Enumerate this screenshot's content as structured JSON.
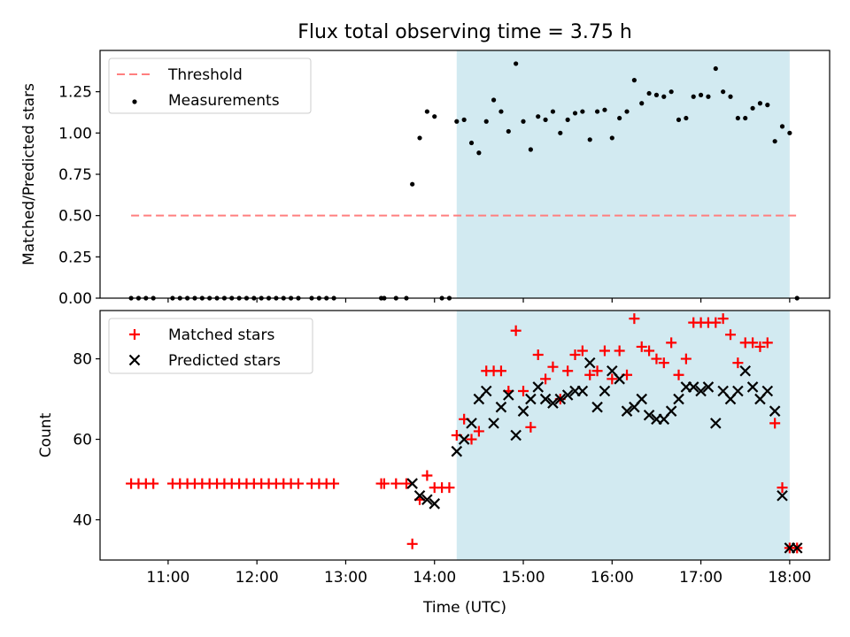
{
  "title": "Flux total observing time = 3.75 h",
  "colors": {
    "threshold": "#ff7f7f",
    "measurement": "#000000",
    "matched": "#ff0000",
    "predicted": "#000000",
    "observing_span": "#add8e6"
  },
  "chart_data": [
    {
      "type": "scatter",
      "ylabel": "Matched/Predicted stars",
      "xlabel": "",
      "ylim": [
        0,
        1.5
      ],
      "xlim": [
        "10:14",
        "18:27"
      ],
      "x_unit": "UTC time of day",
      "yticks": [
        "0.00",
        "0.25",
        "0.50",
        "0.75",
        "1.00",
        "1.25"
      ],
      "grid": false,
      "legend_position": "upper left",
      "legend": [
        "Threshold",
        "Measurements"
      ],
      "shaded_span": [
        "14:15",
        "18:00"
      ],
      "threshold": {
        "name": "Threshold",
        "value": 0.5,
        "x_range": [
          "10:35",
          "18:05"
        ]
      },
      "series": [
        {
          "name": "Measurements",
          "points": [
            [
              "10:35",
              0
            ],
            [
              "10:40",
              0
            ],
            [
              "10:45",
              0
            ],
            [
              "10:50",
              0
            ],
            [
              "11:03",
              0
            ],
            [
              "11:08",
              0
            ],
            [
              "11:13",
              0
            ],
            [
              "11:18",
              0
            ],
            [
              "11:23",
              0
            ],
            [
              "11:28",
              0
            ],
            [
              "11:33",
              0
            ],
            [
              "11:38",
              0
            ],
            [
              "11:43",
              0
            ],
            [
              "11:48",
              0
            ],
            [
              "11:53",
              0
            ],
            [
              "11:58",
              0
            ],
            [
              "12:03",
              0
            ],
            [
              "12:08",
              0
            ],
            [
              "12:13",
              0
            ],
            [
              "12:18",
              0
            ],
            [
              "12:23",
              0
            ],
            [
              "12:28",
              0
            ],
            [
              "12:37",
              0
            ],
            [
              "12:42",
              0
            ],
            [
              "12:47",
              0
            ],
            [
              "12:52",
              0
            ],
            [
              "13:24",
              0
            ],
            [
              "13:26",
              0
            ],
            [
              "13:34",
              0
            ],
            [
              "13:41",
              0
            ],
            [
              "13:45",
              0.69
            ],
            [
              "13:50",
              0.97
            ],
            [
              "13:55",
              1.13
            ],
            [
              "14:00",
              1.1
            ],
            [
              "14:05",
              0
            ],
            [
              "14:10",
              0
            ],
            [
              "14:15",
              1.07
            ],
            [
              "14:20",
              1.08
            ],
            [
              "14:25",
              0.94
            ],
            [
              "14:30",
              0.88
            ],
            [
              "14:35",
              1.07
            ],
            [
              "14:40",
              1.2
            ],
            [
              "14:45",
              1.13
            ],
            [
              "14:50",
              1.01
            ],
            [
              "14:55",
              1.42
            ],
            [
              "15:00",
              1.07
            ],
            [
              "15:05",
              0.9
            ],
            [
              "15:10",
              1.1
            ],
            [
              "15:15",
              1.08
            ],
            [
              "15:20",
              1.13
            ],
            [
              "15:25",
              1.0
            ],
            [
              "15:30",
              1.08
            ],
            [
              "15:35",
              1.12
            ],
            [
              "15:40",
              1.13
            ],
            [
              "15:45",
              0.96
            ],
            [
              "15:50",
              1.13
            ],
            [
              "15:55",
              1.14
            ],
            [
              "16:00",
              0.97
            ],
            [
              "16:05",
              1.09
            ],
            [
              "16:10",
              1.13
            ],
            [
              "16:15",
              1.32
            ],
            [
              "16:20",
              1.18
            ],
            [
              "16:25",
              1.24
            ],
            [
              "16:30",
              1.23
            ],
            [
              "16:35",
              1.22
            ],
            [
              "16:40",
              1.25
            ],
            [
              "16:45",
              1.08
            ],
            [
              "16:50",
              1.09
            ],
            [
              "16:55",
              1.22
            ],
            [
              "17:00",
              1.23
            ],
            [
              "17:05",
              1.22
            ],
            [
              "17:10",
              1.39
            ],
            [
              "17:15",
              1.25
            ],
            [
              "17:20",
              1.22
            ],
            [
              "17:25",
              1.09
            ],
            [
              "17:30",
              1.09
            ],
            [
              "17:35",
              1.15
            ],
            [
              "17:40",
              1.18
            ],
            [
              "17:45",
              1.17
            ],
            [
              "17:50",
              0.95
            ],
            [
              "17:55",
              1.04
            ],
            [
              "18:00",
              1.0
            ],
            [
              "18:05",
              0
            ]
          ]
        }
      ]
    },
    {
      "type": "scatter",
      "ylabel": "Count",
      "xlabel": "Time (UTC)",
      "ylim": [
        30,
        92
      ],
      "xlim": [
        "10:14",
        "18:27"
      ],
      "x_unit": "UTC time of day",
      "yticks": [
        "40",
        "60",
        "80"
      ],
      "xticks": [
        "11:00",
        "12:00",
        "13:00",
        "14:00",
        "15:00",
        "16:00",
        "17:00",
        "18:00"
      ],
      "grid": false,
      "legend_position": "upper left",
      "legend": [
        "Matched stars",
        "Predicted stars"
      ],
      "shaded_span": [
        "14:15",
        "18:00"
      ],
      "series": [
        {
          "name": "Matched stars",
          "marker": "plus",
          "points": [
            [
              "10:35",
              49
            ],
            [
              "10:40",
              49
            ],
            [
              "10:45",
              49
            ],
            [
              "10:50",
              49
            ],
            [
              "11:03",
              49
            ],
            [
              "11:08",
              49
            ],
            [
              "11:13",
              49
            ],
            [
              "11:18",
              49
            ],
            [
              "11:23",
              49
            ],
            [
              "11:28",
              49
            ],
            [
              "11:33",
              49
            ],
            [
              "11:38",
              49
            ],
            [
              "11:43",
              49
            ],
            [
              "11:48",
              49
            ],
            [
              "11:53",
              49
            ],
            [
              "11:58",
              49
            ],
            [
              "12:03",
              49
            ],
            [
              "12:08",
              49
            ],
            [
              "12:13",
              49
            ],
            [
              "12:18",
              49
            ],
            [
              "12:23",
              49
            ],
            [
              "12:28",
              49
            ],
            [
              "12:37",
              49
            ],
            [
              "12:42",
              49
            ],
            [
              "12:47",
              49
            ],
            [
              "12:52",
              49
            ],
            [
              "13:24",
              49
            ],
            [
              "13:26",
              49
            ],
            [
              "13:34",
              49
            ],
            [
              "13:41",
              49
            ],
            [
              "13:45",
              34
            ],
            [
              "13:50",
              45
            ],
            [
              "13:55",
              51
            ],
            [
              "14:00",
              48
            ],
            [
              "14:05",
              48
            ],
            [
              "14:10",
              48
            ],
            [
              "14:15",
              61
            ],
            [
              "14:20",
              65
            ],
            [
              "14:25",
              60
            ],
            [
              "14:30",
              62
            ],
            [
              "14:35",
              77
            ],
            [
              "14:40",
              77
            ],
            [
              "14:45",
              77
            ],
            [
              "14:50",
              72
            ],
            [
              "14:55",
              87
            ],
            [
              "15:00",
              72
            ],
            [
              "15:05",
              63
            ],
            [
              "15:10",
              81
            ],
            [
              "15:15",
              75
            ],
            [
              "15:20",
              78
            ],
            [
              "15:25",
              70
            ],
            [
              "15:30",
              77
            ],
            [
              "15:35",
              81
            ],
            [
              "15:40",
              82
            ],
            [
              "15:45",
              76
            ],
            [
              "15:50",
              77
            ],
            [
              "15:55",
              82
            ],
            [
              "16:00",
              75
            ],
            [
              "16:05",
              82
            ],
            [
              "16:10",
              76
            ],
            [
              "16:15",
              90
            ],
            [
              "16:20",
              83
            ],
            [
              "16:25",
              82
            ],
            [
              "16:30",
              80
            ],
            [
              "16:35",
              79
            ],
            [
              "16:40",
              84
            ],
            [
              "16:45",
              76
            ],
            [
              "16:50",
              80
            ],
            [
              "16:55",
              89
            ],
            [
              "17:00",
              89
            ],
            [
              "17:05",
              89
            ],
            [
              "17:10",
              89
            ],
            [
              "17:15",
              90
            ],
            [
              "17:20",
              86
            ],
            [
              "17:25",
              79
            ],
            [
              "17:30",
              84
            ],
            [
              "17:35",
              84
            ],
            [
              "17:40",
              83
            ],
            [
              "17:45",
              84
            ],
            [
              "17:50",
              64
            ],
            [
              "17:55",
              48
            ],
            [
              "18:00",
              33
            ],
            [
              "18:05",
              33
            ]
          ]
        },
        {
          "name": "Predicted stars",
          "marker": "x",
          "points": [
            [
              "13:45",
              49
            ],
            [
              "13:50",
              46
            ],
            [
              "13:55",
              45
            ],
            [
              "14:00",
              44
            ],
            [
              "14:15",
              57
            ],
            [
              "14:20",
              60
            ],
            [
              "14:25",
              64
            ],
            [
              "14:30",
              70
            ],
            [
              "14:35",
              72
            ],
            [
              "14:40",
              64
            ],
            [
              "14:45",
              68
            ],
            [
              "14:50",
              71
            ],
            [
              "14:55",
              61
            ],
            [
              "15:00",
              67
            ],
            [
              "15:05",
              70
            ],
            [
              "15:10",
              73
            ],
            [
              "15:15",
              70
            ],
            [
              "15:20",
              69
            ],
            [
              "15:25",
              70
            ],
            [
              "15:30",
              71
            ],
            [
              "15:35",
              72
            ],
            [
              "15:40",
              72
            ],
            [
              "15:45",
              79
            ],
            [
              "15:50",
              68
            ],
            [
              "15:55",
              72
            ],
            [
              "16:00",
              77
            ],
            [
              "16:05",
              75
            ],
            [
              "16:10",
              67
            ],
            [
              "16:15",
              68
            ],
            [
              "16:20",
              70
            ],
            [
              "16:25",
              66
            ],
            [
              "16:30",
              65
            ],
            [
              "16:35",
              65
            ],
            [
              "16:40",
              67
            ],
            [
              "16:45",
              70
            ],
            [
              "16:50",
              73
            ],
            [
              "16:55",
              73
            ],
            [
              "17:00",
              72
            ],
            [
              "17:05",
              73
            ],
            [
              "17:10",
              64
            ],
            [
              "17:15",
              72
            ],
            [
              "17:20",
              70
            ],
            [
              "17:25",
              72
            ],
            [
              "17:30",
              77
            ],
            [
              "17:35",
              73
            ],
            [
              "17:40",
              70
            ],
            [
              "17:45",
              72
            ],
            [
              "17:50",
              67
            ],
            [
              "17:55",
              46
            ],
            [
              "18:00",
              33
            ],
            [
              "18:05",
              33
            ]
          ]
        }
      ]
    }
  ]
}
